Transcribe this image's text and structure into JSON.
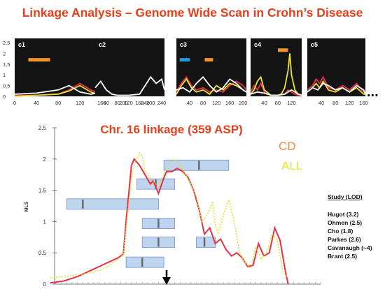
{
  "page_title": "Linkage Analysis – Genome Wide Scan in Crohn’s Disease",
  "continuation_marker": "...",
  "colors": {
    "title_red": "#e8401c",
    "cd_label": "#f08a4a",
    "all_label": "#e6e62a",
    "cd_line": "#e8304a",
    "all_line": "#e0e020",
    "panel_bg": "#141414",
    "interval_box": "#a9c6e8",
    "interval_box_border": "#6f94c4"
  },
  "chart_data": [
    {
      "id": "c1",
      "type": "line",
      "title": "c1",
      "ylim": [
        0,
        2.5
      ],
      "yticks": [
        "0",
        "0,5",
        "1",
        "1,5",
        "2",
        "2,5"
      ],
      "xlim": [
        0,
        260
      ],
      "xticks": [
        "0",
        "40",
        "80",
        "120",
        "160",
        "200",
        "240"
      ],
      "series": [
        {
          "color": "#e8304a",
          "x": [
            0,
            40,
            80,
            100,
            120,
            140,
            160,
            180,
            200,
            220,
            230,
            240,
            250
          ],
          "y": [
            0.05,
            0.05,
            0.1,
            0.3,
            0.6,
            0.3,
            0.1,
            0.2,
            0.4,
            0.8,
            1.4,
            2.1,
            1.5
          ]
        },
        {
          "color": "#f0e030",
          "x": [
            0,
            40,
            80,
            100,
            120,
            140,
            160,
            180,
            200,
            220,
            240,
            250
          ],
          "y": [
            0,
            0.05,
            0.1,
            0.25,
            0.5,
            0.2,
            0.05,
            0.2,
            0.5,
            1.0,
            1.6,
            1.1
          ]
        },
        {
          "color": "#ffffff",
          "x": [
            0,
            40,
            80,
            100,
            120,
            140,
            160,
            180,
            200,
            220,
            240,
            250
          ],
          "y": [
            0.1,
            0.15,
            0.3,
            0.5,
            0.2,
            0.1,
            0.2,
            0.6,
            0.9,
            1.1,
            1.3,
            0.9
          ]
        }
      ],
      "intervals": [
        {
          "color": "#f0932a",
          "x_start": 25,
          "x_end": 65,
          "y": 1.7
        }
      ]
    },
    {
      "id": "c2",
      "type": "line",
      "title": "c2",
      "xlim": [
        0,
        250
      ],
      "xticks": [
        "40",
        "80",
        "120",
        "160",
        "200",
        "240"
      ],
      "series": [
        {
          "color": "#ffffff",
          "x": [
            0,
            20,
            40,
            60,
            80,
            120,
            160,
            180,
            200,
            220,
            240,
            250
          ],
          "y": [
            0.4,
            0.7,
            0.3,
            0.1,
            0.05,
            0.05,
            0.1,
            0.5,
            0.9,
            0.6,
            0.8,
            0.3
          ]
        }
      ]
    },
    {
      "id": "c3",
      "type": "line",
      "title": "c3",
      "xlim": [
        0,
        210
      ],
      "xticks": [
        "40",
        "80",
        "120",
        "160",
        "200"
      ],
      "series": [
        {
          "color": "#e8304a",
          "x": [
            0,
            15,
            30,
            45,
            60,
            80,
            100,
            120,
            140,
            160,
            180,
            200,
            210
          ],
          "y": [
            0.2,
            0.6,
            0.9,
            0.5,
            0.3,
            0.4,
            0.2,
            0.3,
            0.2,
            0.5,
            0.7,
            0.5,
            0.3
          ]
        },
        {
          "color": "#f0e030",
          "x": [
            0,
            15,
            30,
            45,
            60,
            80,
            100,
            120,
            140,
            160,
            180,
            200,
            210
          ],
          "y": [
            0.1,
            0.5,
            0.8,
            0.4,
            0.2,
            0.3,
            0.1,
            0.5,
            0.3,
            0.6,
            0.5,
            0.3,
            0.2
          ]
        },
        {
          "color": "#ffffff",
          "x": [
            0,
            20,
            40,
            60,
            80,
            100,
            120,
            140,
            160,
            180,
            200,
            210
          ],
          "y": [
            0.3,
            0.4,
            0.2,
            0.6,
            0.9,
            0.5,
            0.2,
            0.4,
            0.8,
            0.6,
            0.3,
            0.2
          ]
        }
      ],
      "intervals": [
        {
          "color": "#1f9be0",
          "x_start": 10,
          "x_end": 40,
          "y": 1.7
        },
        {
          "color": "#f0932a",
          "x_start": 85,
          "x_end": 110,
          "y": 1.7
        }
      ]
    },
    {
      "id": "c4",
      "type": "line",
      "title": "c4",
      "xlim": [
        0,
        150
      ],
      "xticks": [
        "40",
        "80",
        "120"
      ],
      "series": [
        {
          "color": "#e8304a",
          "x": [
            0,
            10,
            20,
            30,
            40,
            60,
            80,
            100,
            110,
            120,
            130,
            140,
            150
          ],
          "y": [
            0.2,
            0.5,
            0.3,
            0.6,
            0.2,
            0.05,
            0.05,
            0.1,
            0.3,
            0.2,
            0.1,
            0.05,
            0.05
          ]
        },
        {
          "color": "#f0e030",
          "x": [
            0,
            10,
            20,
            30,
            40,
            60,
            80,
            90,
            100,
            110,
            115,
            120,
            130,
            140,
            150
          ],
          "y": [
            0.1,
            0.3,
            0.7,
            0.9,
            0.3,
            0.05,
            0.05,
            0.1,
            0.4,
            1.2,
            2.0,
            1.0,
            0.3,
            0.1,
            0.05
          ]
        },
        {
          "color": "#ffffff",
          "x": [
            0,
            20,
            40,
            60,
            80,
            100,
            120,
            140,
            150
          ],
          "y": [
            0.1,
            0.2,
            0.15,
            0.05,
            0.05,
            0.1,
            0.3,
            0.1,
            0.05
          ]
        }
      ],
      "intervals": [
        {
          "color": "#f0932a",
          "x_start": 80,
          "x_end": 110,
          "y": 2.15
        }
      ]
    },
    {
      "id": "c5",
      "type": "line",
      "title": "c5",
      "xlim": [
        0,
        165
      ],
      "xticks": [
        "40",
        "80",
        "120",
        "160"
      ],
      "series": [
        {
          "color": "#e8304a",
          "x": [
            0,
            15,
            25,
            35,
            45,
            60,
            80,
            100,
            120,
            140,
            160,
            165
          ],
          "y": [
            0.3,
            0.5,
            0.8,
            0.6,
            0.9,
            0.4,
            0.3,
            0.5,
            0.3,
            0.6,
            0.2,
            0.1
          ]
        },
        {
          "color": "#f0e030",
          "x": [
            0,
            15,
            25,
            35,
            45,
            60,
            80,
            100,
            120,
            140,
            160,
            165
          ],
          "y": [
            0.2,
            0.4,
            0.6,
            0.4,
            0.7,
            0.3,
            0.2,
            0.4,
            0.2,
            0.4,
            0.1,
            0.1
          ]
        },
        {
          "color": "#ffffff",
          "x": [
            0,
            15,
            30,
            45,
            60,
            80,
            100,
            120,
            140,
            160,
            165
          ],
          "y": [
            0.2,
            0.4,
            0.3,
            0.6,
            0.5,
            0.3,
            0.4,
            0.2,
            0.5,
            0.3,
            0.1
          ]
        }
      ]
    },
    {
      "id": "chr16",
      "type": "line",
      "title": "Chr. 16 linkage (359 ASP)",
      "ylabel": "MLS",
      "ylim": [
        0,
        2.5
      ],
      "yticks": [
        "0",
        "0.5",
        "1",
        "1.5",
        "2",
        "2.5"
      ],
      "xlim": [
        0,
        100
      ],
      "grid": false,
      "legend_position": "top-right",
      "series": [
        {
          "name": "CD",
          "color": "#e8304a",
          "x": [
            0,
            5,
            10,
            15,
            20,
            25,
            27,
            28,
            30,
            31,
            33,
            35,
            37,
            38,
            40,
            42,
            43,
            45,
            47,
            49,
            51,
            53,
            55,
            57,
            59,
            61,
            63,
            65,
            67,
            69,
            71,
            73,
            75,
            77,
            79,
            81,
            83,
            85,
            87,
            88
          ],
          "y": [
            0.02,
            0.05,
            0.12,
            0.22,
            0.32,
            0.42,
            0.48,
            1.0,
            1.9,
            2.0,
            1.9,
            1.75,
            1.6,
            1.65,
            1.45,
            1.7,
            1.8,
            1.8,
            1.85,
            1.8,
            1.7,
            1.5,
            1.2,
            0.8,
            0.9,
            0.65,
            0.72,
            0.55,
            0.45,
            0.5,
            0.42,
            0.28,
            0.3,
            0.65,
            0.45,
            0.5,
            0.9,
            0.7,
            0.2,
            0.0
          ]
        },
        {
          "name": "ALL",
          "color": "#e0e020",
          "dashed": true,
          "x": [
            0,
            5,
            10,
            15,
            20,
            25,
            27,
            28,
            30,
            31,
            32,
            33,
            34,
            35,
            37,
            40,
            42,
            44,
            46,
            48,
            50,
            52,
            54,
            56,
            58,
            60,
            61,
            62,
            64,
            66,
            68,
            70,
            72,
            74,
            76,
            78,
            80,
            82,
            84,
            86,
            88
          ],
          "y": [
            0.1,
            0.12,
            0.15,
            0.18,
            0.25,
            0.4,
            0.47,
            0.9,
            1.7,
            1.9,
            2.0,
            2.1,
            2.05,
            1.8,
            1.7,
            1.55,
            1.75,
            1.95,
            2.0,
            1.9,
            1.75,
            1.6,
            1.4,
            1.0,
            1.1,
            1.3,
            0.95,
            0.8,
            1.1,
            1.35,
            1.0,
            0.5,
            0.35,
            0.25,
            0.6,
            0.4,
            0.5,
            0.8,
            0.7,
            0.2,
            0.1
          ]
        }
      ],
      "studies_header": "Study (LOD)",
      "studies": [
        "Hugot (3.2)",
        "Ohmen (2.5)",
        "Cho (1.8)",
        "Parkes (2.6)",
        "Cavanaugh (~4)",
        "Brant (2.5)"
      ],
      "intervals": [
        {
          "x_start": 42,
          "x_end": 66,
          "marker": 55,
          "y": 1.9
        },
        {
          "x_start": 32,
          "x_end": 46,
          "marker": 39,
          "y": 1.6
        },
        {
          "x_start": 6,
          "x_end": 40,
          "marker": 12,
          "y": 1.28
        },
        {
          "x_start": 34,
          "x_end": 46,
          "marker": 40,
          "y": 0.97
        },
        {
          "x_start": 34,
          "x_end": 46,
          "marker": 40,
          "y": 0.67
        },
        {
          "x_start": 54,
          "x_end": 61,
          "marker": 57,
          "y": 0.67
        },
        {
          "x_start": 28,
          "x_end": 42,
          "marker": 34,
          "y": 0.35
        }
      ],
      "arrow_x": 43
    }
  ]
}
